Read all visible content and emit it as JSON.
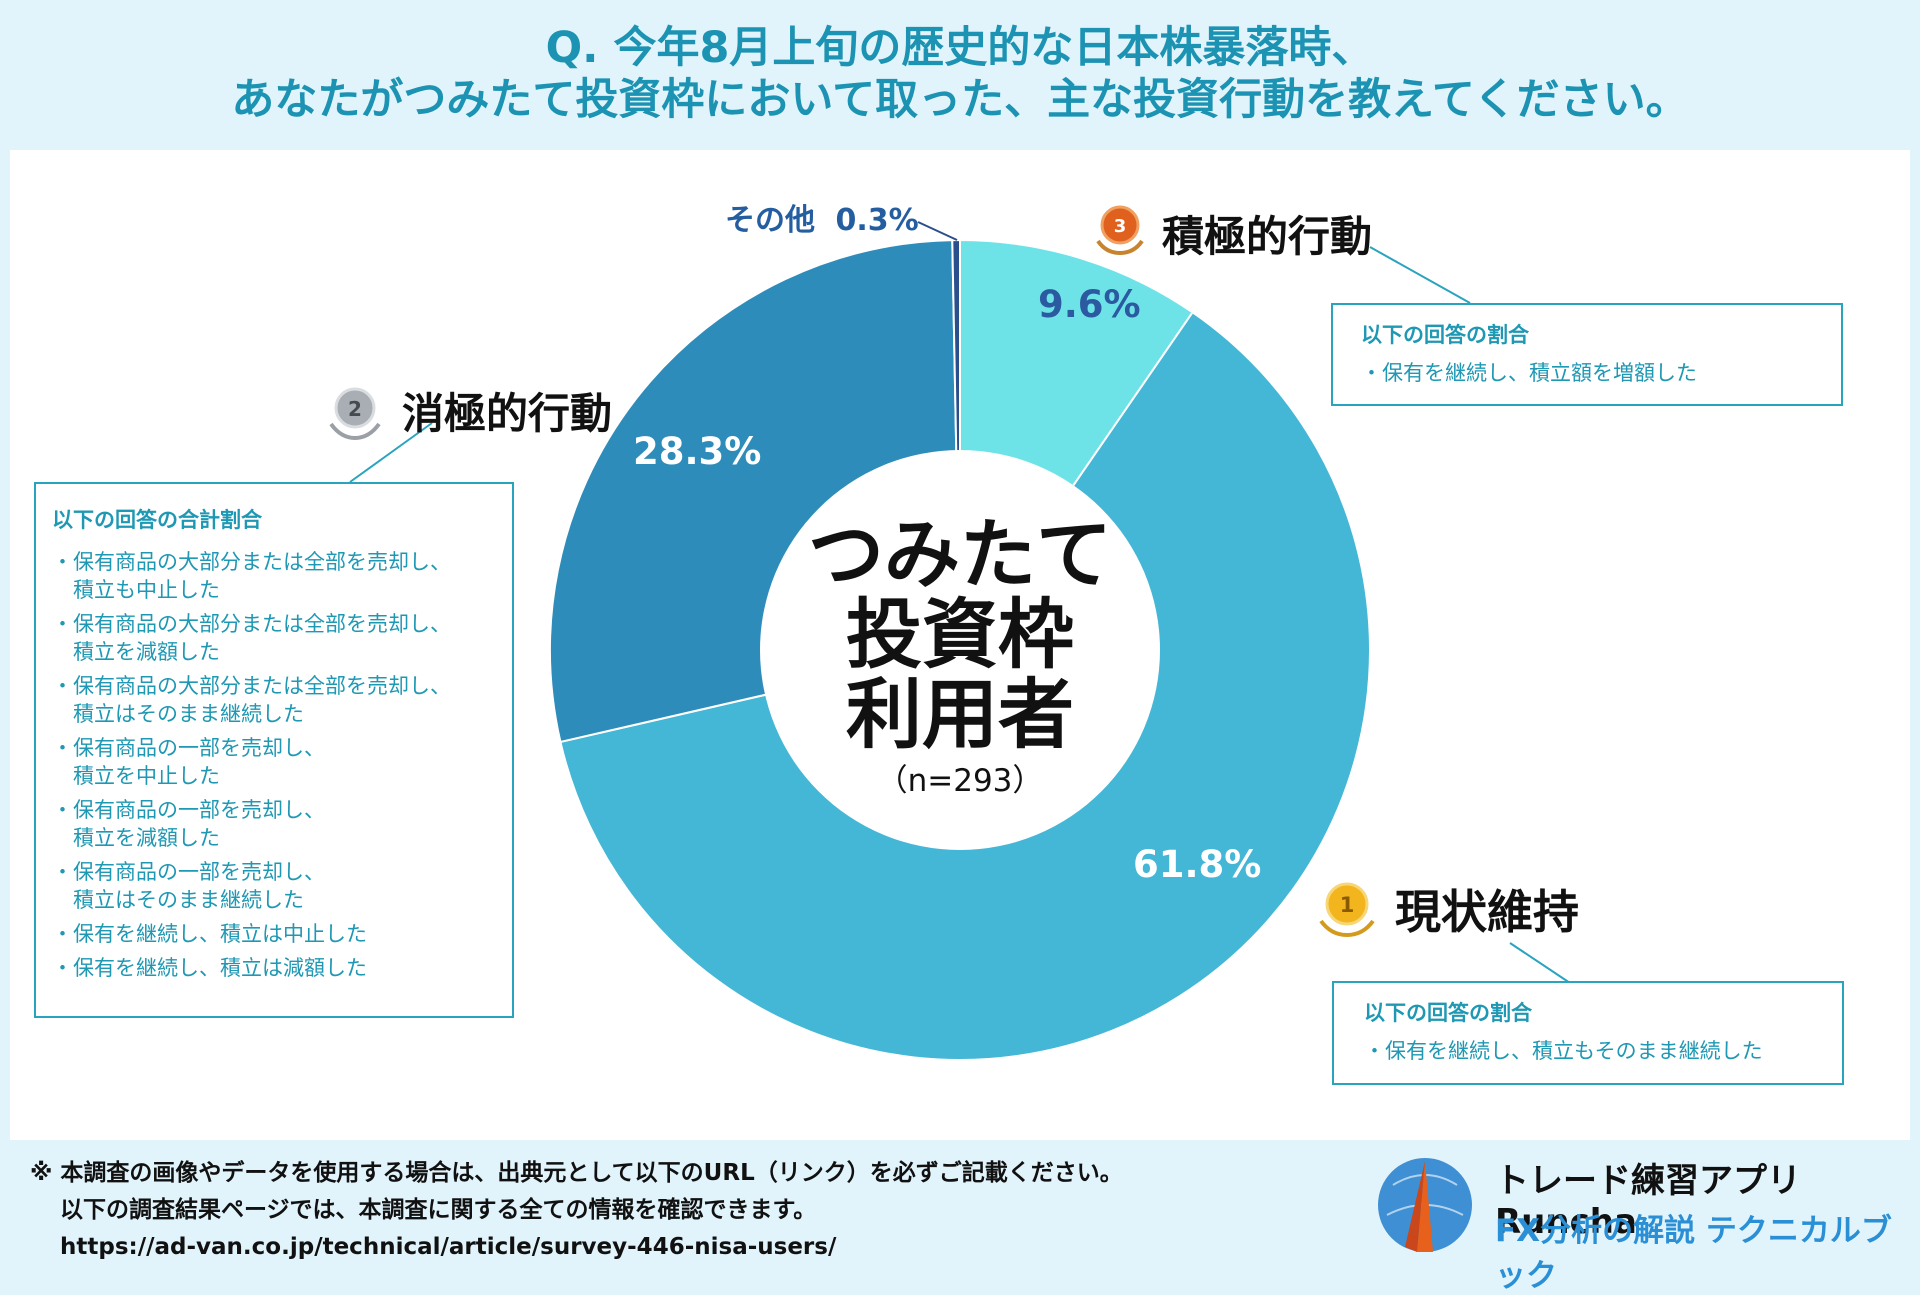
{
  "title": {
    "line1": "Q. 今年8月上旬の歴史的な日本株暴落時、",
    "line2": "あなたがつみたて投資枠において取った、主な投資行動を教えてください。"
  },
  "center": {
    "line1": "つみたて",
    "line2": "投資枠",
    "line3": "利用者",
    "n": "（n=293）"
  },
  "chart_data": {
    "type": "pie",
    "title": "つみたて投資枠利用者（n=293）",
    "categories": [
      "積極的行動",
      "現状維持",
      "消極的行動",
      "その他"
    ],
    "values": [
      9.6,
      61.8,
      28.3,
      0.3
    ],
    "labels": [
      "9.6%",
      "61.8%",
      "28.3%",
      "0.3%"
    ],
    "colors": [
      "#6de3e8",
      "#44b6d6",
      "#2e8cba",
      "#2b4f8c"
    ],
    "label_colors": [
      "#2b5aa0",
      "#ffffff",
      "#ffffff",
      "#245ea0"
    ]
  },
  "categories": {
    "active": {
      "rank": "3",
      "name": "積極的行動"
    },
    "status_quo": {
      "rank": "1",
      "name": "現状維持"
    },
    "passive": {
      "rank": "2",
      "name": "消極的行動"
    },
    "other": {
      "name": "その他",
      "value": "0.3%"
    }
  },
  "boxes": {
    "active": {
      "heading": "以下の回答の割合",
      "items": [
        "・保有を継続し、積立額を増額した"
      ]
    },
    "status_quo": {
      "heading": "以下の回答の割合",
      "items": [
        "・保有を継続し、積立もそのまま継続した"
      ]
    },
    "passive": {
      "heading": "以下の回答の合計割合",
      "items": [
        "・保有商品の大部分または全部を売却し、",
        "　積立も中止した",
        "・保有商品の大部分または全部を売却し、",
        "　積立を減額した",
        "・保有商品の大部分または全部を売却し、",
        "　積立はそのまま継続した",
        "・保有商品の一部を売却し、",
        "　積立を中止した",
        "・保有商品の一部を売却し、",
        "　積立を減額した",
        "・保有商品の一部を売却し、",
        "　積立はそのまま継続した",
        "・保有を継続し、積立は中止した",
        "・保有を継続し、積立は減額した"
      ]
    }
  },
  "footer": {
    "line1": "※ 本調査の画像やデータを使用する場合は、出典元として以下のURL（リンク）を必ずご記載ください。",
    "line2": "以下の調査結果ページでは、本調査に関する全ての情報を確認できます。",
    "url": "https://ad-van.co.jp/technical/article/survey-446-nisa-users/"
  },
  "brand": {
    "line1": "トレード練習アプリ Runcha",
    "line2": "FX分析の解説 テクニカルブック"
  }
}
